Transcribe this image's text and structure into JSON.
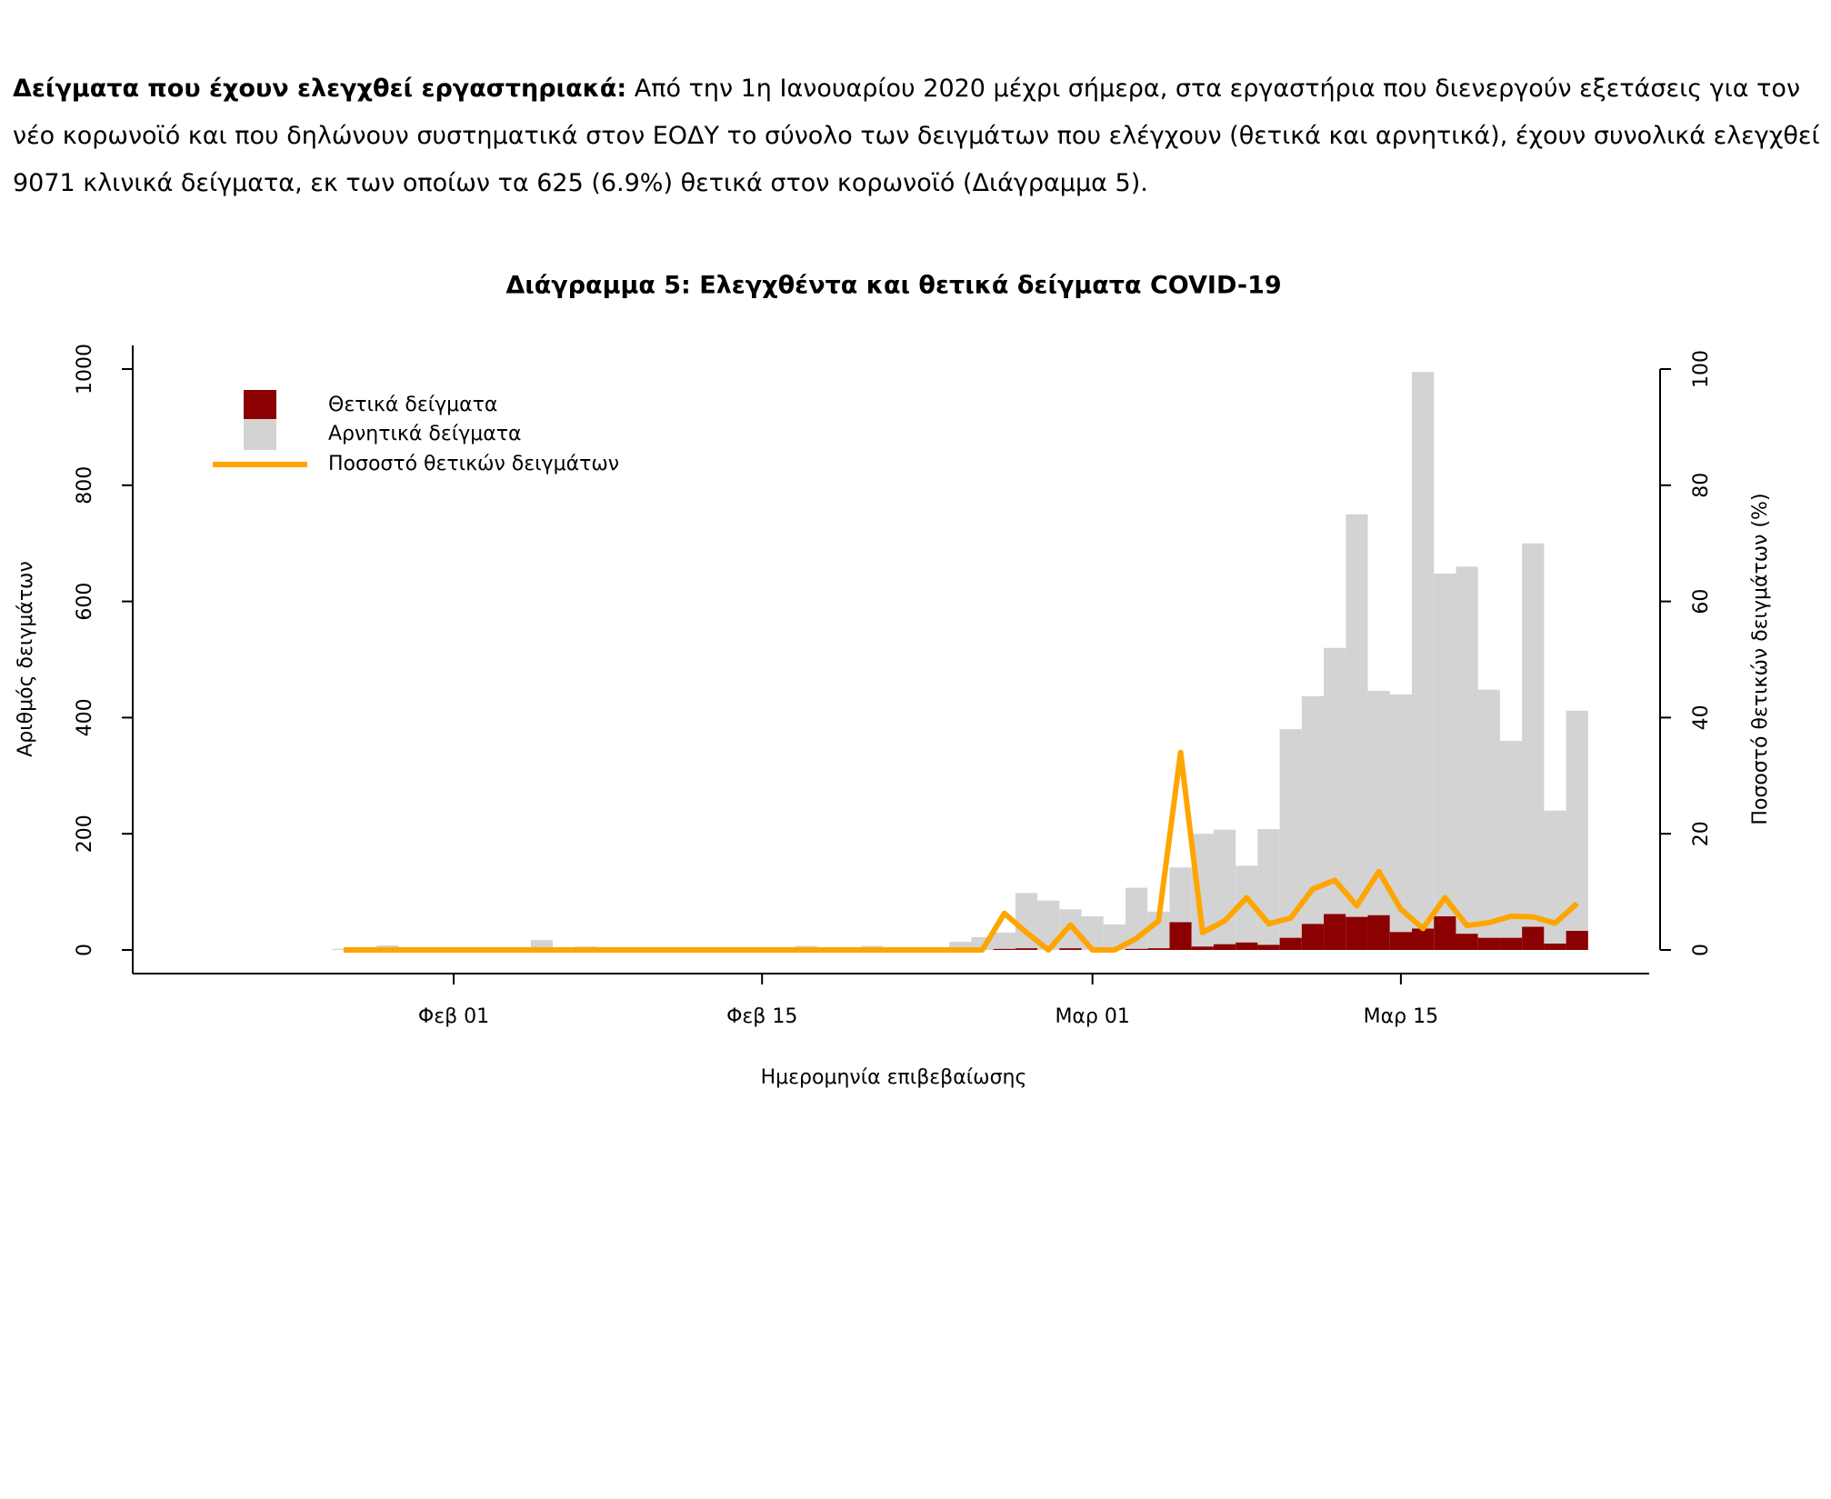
{
  "text": {
    "lead": "Δείγματα που έχουν ελεγχθεί εργαστηριακά:",
    "body": "Από την 1η Ιανουαρίου 2020 μέχρι σήμερα, στα εργαστήρια που διενεργούν εξετάσεις για τον νέο κορωνοϊό και που δηλώνουν συστηματικά στον ΕΟΔΥ το σύνολο των δειγμάτων που ελέγχουν (θετικά και αρνητικά), έχουν συνολικά ελεγχθεί 9071 κλινικά δείγματα, εκ των οποίων τα 625 (6.9%) θετικά στον κορωνοϊό (Διάγραμμα 5)."
  },
  "chart_data": {
    "type": "bar",
    "stacked": true,
    "title": "Διάγραμμα 5: Ελεγχθέντα και θετικά δείγματα COVID-19",
    "xlabel": "Ημερομηνία επιβεβαίωσης",
    "ylabel": "Αριθμός δειγμάτων",
    "y2label": "Ποσοστό θετικών δειγμάτων (%)",
    "legend": "top-left",
    "categories": [
      null,
      null,
      null,
      null,
      null,
      "Φεβ 01",
      null,
      null,
      null,
      null,
      null,
      null,
      null,
      null,
      null,
      null,
      null,
      null,
      null,
      "Φεβ 15",
      null,
      null,
      null,
      null,
      null,
      null,
      null,
      null,
      null,
      null,
      null,
      null,
      null,
      null,
      "Μαρ 01",
      null,
      null,
      null,
      null,
      null,
      null,
      null,
      null,
      null,
      null,
      null,
      null,
      null,
      "Μαρ 15",
      null,
      null,
      null,
      null,
      null,
      null,
      null,
      null
    ],
    "series": [
      {
        "name": "Θετικά δείγματα",
        "color": "#8b0000",
        "values": [
          0,
          0,
          0,
          0,
          0,
          0,
          0,
          0,
          0,
          0,
          0,
          0,
          0,
          0,
          0,
          0,
          0,
          0,
          0,
          0,
          0,
          0,
          0,
          0,
          0,
          0,
          0,
          0,
          0,
          0,
          2,
          3,
          0,
          3,
          0,
          0,
          2,
          3,
          48,
          6,
          10,
          13,
          9,
          21,
          45,
          62,
          57,
          60,
          31,
          37,
          58,
          28,
          21,
          21,
          40,
          11,
          33
        ]
      },
      {
        "name": "Αρνητικά δείγματα",
        "color": "#d3d3d3",
        "values": [
          2,
          3,
          8,
          5,
          3,
          2,
          3,
          4,
          3,
          17,
          4,
          6,
          5,
          2,
          3,
          3,
          2,
          2,
          3,
          3,
          3,
          7,
          4,
          4,
          7,
          3,
          3,
          2,
          14,
          22,
          28,
          95,
          85,
          67,
          58,
          44,
          105,
          63,
          94,
          194,
          197,
          132,
          199,
          359,
          392,
          458,
          693,
          386,
          409,
          958,
          590,
          632,
          427,
          339,
          660,
          229,
          379
        ]
      },
      {
        "name": "Ποσοστό θετικών δειγμάτων",
        "color": "#ffa500",
        "type": "line",
        "axis": "y2",
        "values": [
          0,
          0,
          0,
          0,
          0,
          0,
          0,
          0,
          0,
          0,
          0,
          0,
          0,
          0,
          0,
          0,
          0,
          0,
          0,
          0,
          0,
          0,
          0,
          0,
          0,
          0,
          0,
          0,
          0,
          0,
          6.3,
          3,
          0,
          4.3,
          0,
          0,
          2,
          5,
          34,
          3,
          5,
          9,
          4.5,
          5.5,
          10.5,
          12,
          7.6,
          13.5,
          7,
          3.7,
          9,
          4.2,
          4.7,
          5.8,
          5.7,
          4.6,
          8
        ]
      }
    ],
    "ylim": [
      0,
      1000
    ],
    "yticks": [
      0,
      200,
      400,
      600,
      800,
      1000
    ],
    "y2lim": [
      0,
      100
    ],
    "y2ticks": [
      0,
      20,
      40,
      60,
      80,
      100
    ]
  }
}
